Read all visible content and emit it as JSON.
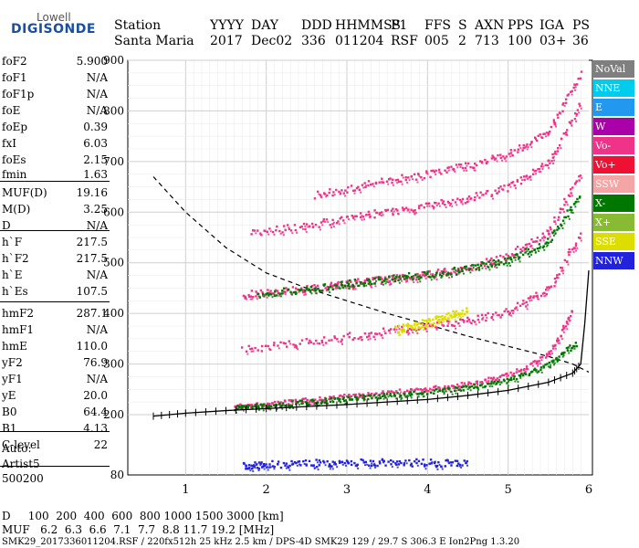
{
  "logo": {
    "line1": "Lowell",
    "line2": "DIGISONDE"
  },
  "header": {
    "labels": [
      "Station",
      "YYYY",
      "DAY",
      "DDD",
      "HHMMSS",
      "P1",
      "FFS",
      "S",
      "AXN",
      "PPS",
      "IGA",
      "PS"
    ],
    "values": [
      "Santa Maria",
      "2017",
      "Dec02",
      "336",
      "011204",
      "RSF",
      "005",
      "2",
      "713",
      "100",
      "03+",
      "36"
    ]
  },
  "params": [
    {
      "k": "foF2",
      "v": "5.900"
    },
    {
      "k": "foF1",
      "v": "N/A"
    },
    {
      "k": "foF1p",
      "v": "N/A"
    },
    {
      "k": "foE",
      "v": "N/A"
    },
    {
      "k": "foEp",
      "v": "0.39"
    },
    {
      "k": "fxI",
      "v": "6.03"
    },
    {
      "k": "foEs",
      "v": "2.15"
    },
    {
      "k": "fmin",
      "v": "1.63"
    },
    {
      "k": "MUF(D)",
      "v": "19.16"
    },
    {
      "k": "M(D)",
      "v": "3.25"
    },
    {
      "k": "D",
      "v": "N/A"
    },
    {
      "k": "h`F",
      "v": "217.5"
    },
    {
      "k": "h`F2",
      "v": "217.5"
    },
    {
      "k": "h`E",
      "v": "N/A"
    },
    {
      "k": "h`Es",
      "v": "107.5"
    },
    {
      "k": "hmF2",
      "v": "287.1"
    },
    {
      "k": "hmF1",
      "v": "N/A"
    },
    {
      "k": "hmE",
      "v": "110.0"
    },
    {
      "k": "yF2",
      "v": "76.9"
    },
    {
      "k": "yF1",
      "v": "N/A"
    },
    {
      "k": "yE",
      "v": "20.0"
    },
    {
      "k": "B0",
      "v": "64.4"
    },
    {
      "k": "B1",
      "v": "4.13"
    },
    {
      "k": "C-level",
      "v": "22"
    }
  ],
  "autoscale": {
    "line1": "Auto:",
    "line2": "Artist5",
    "line3": "500200"
  },
  "legend": [
    {
      "label": "NoVal",
      "color": "#7f7f7f"
    },
    {
      "label": "NNE",
      "color": "#00ccee"
    },
    {
      "label": "E",
      "color": "#2299ee"
    },
    {
      "label": "W",
      "color": "#aa00aa"
    },
    {
      "label": "Vo-",
      "color": "#ee3388"
    },
    {
      "label": "Vo+",
      "color": "#ee1133"
    },
    {
      "label": "SSW",
      "color": "#f4a6a6"
    },
    {
      "label": "X-",
      "color": "#007700"
    },
    {
      "label": "X+",
      "color": "#88bb33"
    },
    {
      "label": "SSE",
      "color": "#dddd00"
    },
    {
      "label": "NNW",
      "color": "#2222dd"
    }
  ],
  "bottom": {
    "d_row": "D     100  200  400  600  800 1000 1500 3000 [km]",
    "muf_row": "MUF   6.2  6.3  6.6  7.1  7.7  8.8 11.7 19.2 [MHz]",
    "info_row": "SMK29_2017336011204.RSF / 220fx512h 25 kHz 2.5 km / DPS-4D SMK29 129 / 29.7 S 306.3 E Ion2Png 1.3.20"
  },
  "chart_data": {
    "type": "scatter",
    "x_ticks": [
      "1",
      "2",
      "3",
      "4",
      "5",
      "6"
    ],
    "y_ticks": [
      "200",
      "300",
      "400",
      "500",
      "600",
      "700",
      "800",
      "900"
    ],
    "y_bottom_label": "80",
    "xlim": [
      0.6,
      6.0
    ],
    "ylim": [
      80,
      900
    ],
    "grid": true,
    "traces": [
      {
        "name": "O-trace 1 hop",
        "color": "#ee3388",
        "x": [
          1.6,
          2.0,
          2.5,
          3.0,
          3.5,
          4.0,
          4.5,
          5.0,
          5.5,
          5.8
        ],
        "y": [
          218,
          222,
          230,
          238,
          245,
          252,
          262,
          280,
          320,
          410
        ]
      },
      {
        "name": "X-trace 1 hop",
        "color": "#007700",
        "x": [
          1.6,
          2.0,
          2.5,
          3.0,
          3.5,
          4.0,
          4.5,
          5.0,
          5.5,
          5.85
        ],
        "y": [
          215,
          220,
          226,
          234,
          240,
          246,
          255,
          270,
          300,
          345
        ]
      },
      {
        "name": "O-trace 2 hop",
        "color": "#ee3388",
        "x": [
          1.7,
          2.2,
          2.8,
          3.2,
          3.6,
          4.0,
          4.5,
          5.0,
          5.5,
          5.9
        ],
        "y": [
          438,
          445,
          456,
          464,
          470,
          478,
          492,
          515,
          565,
          680
        ]
      },
      {
        "name": "X-trace 2 hop",
        "color": "#007700",
        "x": [
          1.9,
          2.5,
          3.0,
          3.5,
          4.0,
          4.5,
          5.0,
          5.5,
          5.9
        ],
        "y": [
          440,
          450,
          460,
          470,
          478,
          490,
          508,
          545,
          640
        ]
      },
      {
        "name": "O-trace 3 hop",
        "color": "#ee3388",
        "x": [
          1.7,
          2.5,
          3.2,
          3.8,
          4.4,
          5.0,
          5.5,
          5.9
        ],
        "y": [
          330,
          345,
          360,
          373,
          385,
          405,
          450,
          560
        ]
      },
      {
        "name": "O-trace 4 hop",
        "color": "#ee3388",
        "x": [
          1.8,
          2.5,
          3.2,
          3.8,
          4.4,
          5.0,
          5.5,
          5.9
        ],
        "y": [
          560,
          575,
          595,
          610,
          625,
          650,
          700,
          820
        ]
      },
      {
        "name": "O-trace 5 hop",
        "color": "#ee3388",
        "x": [
          2.6,
          3.2,
          3.8,
          4.4,
          5.0,
          5.5,
          5.9
        ],
        "y": [
          635,
          655,
          672,
          690,
          715,
          760,
          880
        ]
      },
      {
        "name": "NNW sporadic",
        "color": "#2222dd",
        "x": [
          1.7,
          2.0,
          2.5,
          3.0,
          3.5,
          4.0,
          4.5
        ],
        "y": [
          100,
          102,
          105,
          106,
          107,
          106,
          104
        ]
      },
      {
        "name": "yellow SSE",
        "color": "#dddd00",
        "x": [
          3.6,
          3.9,
          4.2,
          4.5
        ],
        "y": [
          370,
          380,
          395,
          410
        ]
      }
    ],
    "profile_curve": {
      "x": [
        0.6,
        1.0,
        1.5,
        2.0,
        2.5,
        3.0,
        3.5,
        4.0,
        4.5,
        5.0,
        5.5,
        5.8,
        5.9,
        5.95,
        6.0
      ],
      "y": [
        197,
        203,
        208,
        212,
        216,
        220,
        225,
        230,
        238,
        248,
        264,
        282,
        300,
        380,
        485
      ]
    },
    "dashed_curve": {
      "x": [
        0.6,
        1.0,
        1.5,
        2.0,
        2.5,
        3.0,
        3.5,
        4.0,
        4.5,
        5.0,
        5.5,
        5.8,
        6.0
      ],
      "y": [
        670,
        600,
        530,
        480,
        450,
        425,
        400,
        378,
        355,
        335,
        315,
        300,
        284
      ]
    }
  }
}
